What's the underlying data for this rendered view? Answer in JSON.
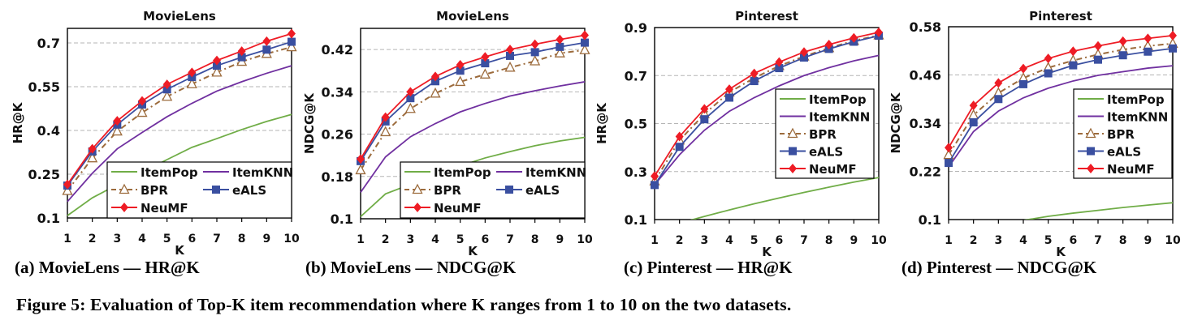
{
  "figure_caption": "Figure 5: Evaluation of Top-K item recommendation where K ranges from 1 to 10 on the two datasets.",
  "series_styles": {
    "ItemPop": {
      "color": "#70ad47",
      "marker": "none",
      "dash": "solid"
    },
    "ItemKNN": {
      "color": "#7030a0",
      "marker": "none",
      "dash": "solid"
    },
    "BPR": {
      "color": "#9c6b3c",
      "marker": "triangle-open",
      "dash": "dashdot"
    },
    "eALS": {
      "color": "#3a4fa0",
      "marker": "square",
      "dash": "solid"
    },
    "NeuMF": {
      "color": "#ee1c25",
      "marker": "diamond",
      "dash": "solid"
    }
  },
  "chart_data": [
    {
      "type": "line",
      "subcaption": "(a) MovieLens — HR@K",
      "title": "MovieLens",
      "xlabel": "K",
      "ylabel": "HR@K",
      "x": [
        1,
        2,
        3,
        4,
        5,
        6,
        7,
        8,
        9,
        10
      ],
      "ylim": [
        0.1,
        0.75
      ],
      "yticks": [
        0.1,
        0.25,
        0.4,
        0.55,
        0.7
      ],
      "ytick_labels": [
        "0.1",
        "0.25",
        "0.4",
        "0.55",
        "0.7"
      ],
      "grid": "horizontal-dashed",
      "legend": {
        "placement": "bottom-right",
        "columns": 2
      },
      "series": [
        {
          "name": "ItemPop",
          "values": [
            0.108,
            0.169,
            0.214,
            0.257,
            0.3,
            0.342,
            0.372,
            0.403,
            0.431,
            0.455
          ]
        },
        {
          "name": "ItemKNN",
          "values": [
            0.156,
            0.253,
            0.337,
            0.393,
            0.447,
            0.493,
            0.535,
            0.567,
            0.596,
            0.622
          ]
        },
        {
          "name": "BPR",
          "values": [
            0.193,
            0.305,
            0.397,
            0.461,
            0.516,
            0.559,
            0.599,
            0.636,
            0.663,
            0.686
          ]
        },
        {
          "name": "eALS",
          "values": [
            0.211,
            0.328,
            0.42,
            0.489,
            0.541,
            0.583,
            0.622,
            0.651,
            0.677,
            0.704
          ]
        },
        {
          "name": "NeuMF",
          "values": [
            0.215,
            0.337,
            0.433,
            0.501,
            0.558,
            0.599,
            0.64,
            0.672,
            0.706,
            0.732
          ]
        }
      ]
    },
    {
      "type": "line",
      "subcaption": "(b) MovieLens — NDCG@K",
      "title": "MovieLens",
      "xlabel": "K",
      "ylabel": "NDCG@K",
      "x": [
        1,
        2,
        3,
        4,
        5,
        6,
        7,
        8,
        9,
        10
      ],
      "ylim": [
        0.1,
        0.46
      ],
      "yticks": [
        0.1,
        0.18,
        0.26,
        0.34,
        0.42
      ],
      "ytick_labels": [
        "0.1",
        "0.18",
        "0.26",
        "0.34",
        "0.42"
      ],
      "grid": "horizontal-dashed",
      "legend": {
        "placement": "bottom-right",
        "columns": 2
      },
      "series": [
        {
          "name": "ItemPop",
          "values": [
            0.104,
            0.147,
            0.165,
            0.185,
            0.2,
            0.215,
            0.227,
            0.238,
            0.247,
            0.254
          ]
        },
        {
          "name": "ItemKNN",
          "values": [
            0.15,
            0.217,
            0.255,
            0.28,
            0.302,
            0.318,
            0.332,
            0.342,
            0.351,
            0.359
          ]
        },
        {
          "name": "BPR",
          "values": [
            0.192,
            0.264,
            0.308,
            0.337,
            0.359,
            0.373,
            0.386,
            0.398,
            0.413,
            0.419
          ]
        },
        {
          "name": "eALS",
          "values": [
            0.209,
            0.284,
            0.328,
            0.36,
            0.38,
            0.394,
            0.408,
            0.415,
            0.425,
            0.433
          ]
        },
        {
          "name": "NeuMF",
          "values": [
            0.213,
            0.292,
            0.34,
            0.369,
            0.391,
            0.406,
            0.42,
            0.43,
            0.439,
            0.447
          ]
        }
      ]
    },
    {
      "type": "line",
      "subcaption": "(c) Pinterest — HR@K",
      "title": "Pinterest",
      "xlabel": "K",
      "ylabel": "HR@K",
      "x": [
        1,
        2,
        3,
        4,
        5,
        6,
        7,
        8,
        9,
        10
      ],
      "ylim": [
        0.1,
        0.9
      ],
      "yticks": [
        0.1,
        0.3,
        0.5,
        0.7,
        0.9
      ],
      "ytick_labels": [
        "0.1",
        "0.3",
        "0.5",
        "0.7",
        "0.9"
      ],
      "grid": "horizontal-dashed",
      "legend": {
        "placement": "center-right",
        "columns": 1
      },
      "series": [
        {
          "name": "ItemPop",
          "values": [
            0.06,
            0.085,
            0.113,
            0.14,
            0.166,
            0.19,
            0.213,
            0.235,
            0.256,
            0.275
          ]
        },
        {
          "name": "ItemKNN",
          "values": [
            0.245,
            0.37,
            0.472,
            0.551,
            0.608,
            0.657,
            0.7,
            0.733,
            0.761,
            0.784
          ]
        },
        {
          "name": "BPR",
          "values": [
            0.26,
            0.43,
            0.54,
            0.63,
            0.69,
            0.74,
            0.78,
            0.815,
            0.845,
            0.868
          ]
        },
        {
          "name": "eALS",
          "values": [
            0.244,
            0.403,
            0.518,
            0.608,
            0.677,
            0.731,
            0.775,
            0.811,
            0.841,
            0.866
          ]
        },
        {
          "name": "NeuMF",
          "values": [
            0.281,
            0.446,
            0.561,
            0.643,
            0.709,
            0.756,
            0.798,
            0.829,
            0.857,
            0.88
          ]
        }
      ]
    },
    {
      "type": "line",
      "subcaption": "(d) Pinterest — NDCG@K",
      "title": "Pinterest",
      "xlabel": "K",
      "ylabel": "NDCG@K",
      "x": [
        1,
        2,
        3,
        4,
        5,
        6,
        7,
        8,
        9,
        10
      ],
      "ylim": [
        0.1,
        0.58
      ],
      "yticks": [
        0.1,
        0.22,
        0.34,
        0.46,
        0.58
      ],
      "ytick_labels": [
        "0.1",
        "0.22",
        "0.34",
        "0.46",
        "0.58"
      ],
      "grid": "horizontal-dashed",
      "legend": {
        "placement": "center-right",
        "columns": 1
      },
      "series": [
        {
          "name": "ItemPop",
          "values": [
            0.04,
            0.065,
            0.083,
            0.098,
            0.108,
            0.116,
            0.123,
            0.13,
            0.136,
            0.142
          ]
        },
        {
          "name": "ItemKNN",
          "values": [
            0.231,
            0.319,
            0.37,
            0.403,
            0.427,
            0.445,
            0.459,
            0.468,
            0.477,
            0.483
          ]
        },
        {
          "name": "BPR",
          "values": [
            0.261,
            0.36,
            0.415,
            0.452,
            0.478,
            0.496,
            0.511,
            0.523,
            0.532,
            0.538
          ]
        },
        {
          "name": "eALS",
          "values": [
            0.241,
            0.342,
            0.4,
            0.437,
            0.464,
            0.484,
            0.498,
            0.509,
            0.518,
            0.526
          ]
        },
        {
          "name": "NeuMF",
          "values": [
            0.279,
            0.384,
            0.44,
            0.476,
            0.501,
            0.519,
            0.532,
            0.544,
            0.551,
            0.558
          ]
        }
      ]
    }
  ]
}
